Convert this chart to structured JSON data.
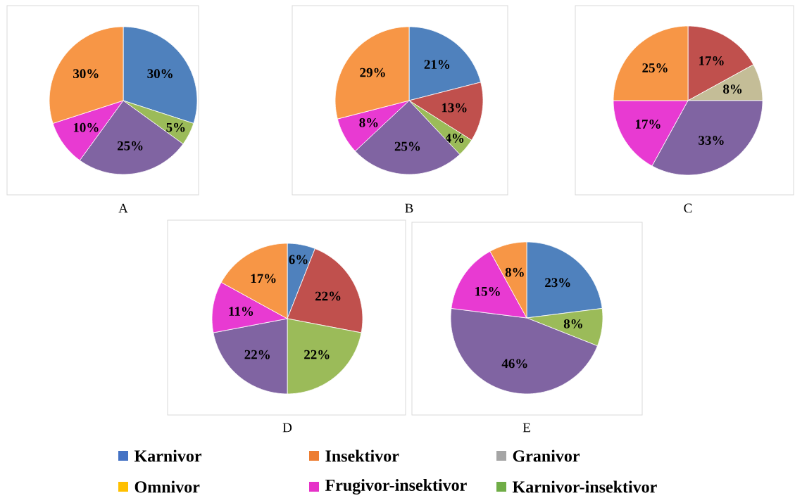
{
  "chart_data": [
    {
      "type": "pie",
      "title": "A",
      "categories": [
        null,
        null,
        null,
        null,
        null
      ],
      "values": [
        30,
        5,
        25,
        10,
        30
      ],
      "colors": [
        "#4f81bd",
        "#9bbb59",
        "#8064a2",
        "#e83ad2",
        "#f79646"
      ],
      "value_labels": [
        "30%",
        "5%",
        "25%",
        "10%",
        "30%"
      ]
    },
    {
      "type": "pie",
      "title": "B",
      "categories": [
        null,
        null,
        null,
        null,
        null,
        null
      ],
      "values": [
        21,
        13,
        4,
        25,
        8,
        29
      ],
      "colors": [
        "#4f81bd",
        "#c0504d",
        "#9bbb59",
        "#8064a2",
        "#e83ad2",
        "#f79646"
      ],
      "value_labels": [
        "21%",
        "13%",
        "4%",
        "25%",
        "8%",
        "29%"
      ]
    },
    {
      "type": "pie",
      "title": "C",
      "categories": [
        null,
        null,
        null,
        null,
        null
      ],
      "values": [
        17,
        8,
        33,
        17,
        25
      ],
      "colors": [
        "#c0504d",
        "#c4bd97",
        "#8064a2",
        "#e83ad2",
        "#f79646"
      ],
      "value_labels": [
        "17%",
        "8%",
        "33%",
        "17%",
        "25%"
      ]
    },
    {
      "type": "pie",
      "title": "D",
      "categories": [
        null,
        null,
        null,
        null,
        null,
        null
      ],
      "values": [
        6,
        22,
        22,
        22,
        11,
        17
      ],
      "colors": [
        "#4f81bd",
        "#c0504d",
        "#9bbb59",
        "#8064a2",
        "#e83ad2",
        "#f79646"
      ],
      "value_labels": [
        "6%",
        "22%",
        "22%",
        "22%",
        "11%",
        "17%"
      ]
    },
    {
      "type": "pie",
      "title": "E",
      "categories": [
        null,
        null,
        null,
        null,
        null
      ],
      "values": [
        23,
        8,
        46,
        15,
        8
      ],
      "colors": [
        "#4f81bd",
        "#9bbb59",
        "#8064a2",
        "#e83ad2",
        "#f79646"
      ],
      "value_labels": [
        "23%",
        "8%",
        "46%",
        "15%",
        "8%"
      ]
    },
    {
      "type": "other",
      "categories": [
        "Karnivor",
        "Insektivor",
        "Granivor",
        "Omnivor",
        "Frugivor-insektivor",
        "Karnivor-insektivor"
      ],
      "colors": [
        "#4472c4",
        "#ed7d31",
        "#a5a5a5",
        "#ffc000",
        "#e632c8",
        "#70ad47"
      ]
    }
  ]
}
